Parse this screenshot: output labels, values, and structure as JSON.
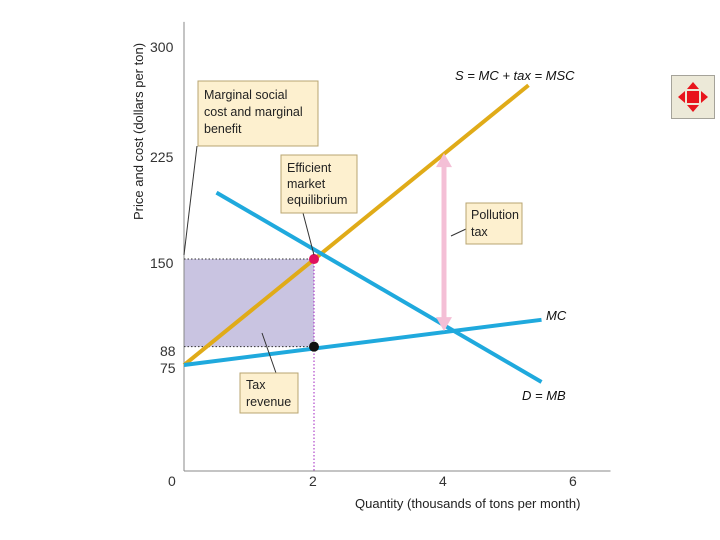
{
  "chart_data": {
    "type": "line",
    "title": "",
    "xlabel": "Quantity (thousands of tons per month)",
    "ylabel": "Price and cost (dollars per ton)",
    "xlim": [
      0,
      6.5
    ],
    "ylim": [
      0,
      315
    ],
    "x_ticks": [
      {
        "value": 0,
        "label": "0"
      },
      {
        "value": 2,
        "label": "2"
      },
      {
        "value": 4,
        "label": "4"
      },
      {
        "value": 6,
        "label": "6"
      }
    ],
    "y_ticks": [
      {
        "value": 300,
        "label": "300"
      },
      {
        "value": 225,
        "label": "225"
      },
      {
        "value": 150,
        "label": "150"
      },
      {
        "value": 88,
        "label": "88"
      },
      {
        "value": 75,
        "label": "75"
      }
    ],
    "series": [
      {
        "name": "S = MC + tax = MSC",
        "color": "#e0ab18",
        "x": [
          0,
          5.3
        ],
        "y": [
          75,
          273
        ]
      },
      {
        "name": "MC",
        "color": "#1fa9dd",
        "x": [
          0,
          5.5
        ],
        "y": [
          75,
          107
        ]
      },
      {
        "name": "D = MB",
        "color": "#1fa9dd",
        "x": [
          0.5,
          5.5
        ],
        "y": [
          197,
          63
        ]
      }
    ],
    "points": [
      {
        "name": "efficient-equilibrium",
        "x": 2,
        "y": 150,
        "color": "#e0105e"
      },
      {
        "name": "mc-at-efficient-quantity",
        "x": 2,
        "y": 88,
        "color": "#111111"
      }
    ],
    "tax_revenue_rect": {
      "x": [
        0,
        2
      ],
      "y": [
        88,
        150
      ],
      "color": "#c9c4e1"
    },
    "pollution_tax_arrow": {
      "x": 4,
      "y": [
        99,
        225
      ],
      "color": "#f4bfd6"
    },
    "annotations": [
      {
        "name": "marginal-social-cost",
        "lines": [
          "Marginal social",
          "cost and marginal",
          "benefit"
        ]
      },
      {
        "name": "efficient-market-equilibrium",
        "lines": [
          "Efficient",
          "market",
          "equilibrium"
        ]
      },
      {
        "name": "pollution-tax",
        "lines": [
          "Pollution",
          "tax"
        ]
      },
      {
        "name": "tax-revenue",
        "lines": [
          "Tax",
          "revenue"
        ]
      }
    ],
    "colors": {
      "callout_bg": "#fdf0cf",
      "callout_border": "#b8a571",
      "highlight_tick": "#e0105e",
      "x_highlight_tick": "#a020c0"
    }
  },
  "nav_button": {
    "icon": "red-cross-arrows-icon",
    "color": "#e8141c"
  }
}
